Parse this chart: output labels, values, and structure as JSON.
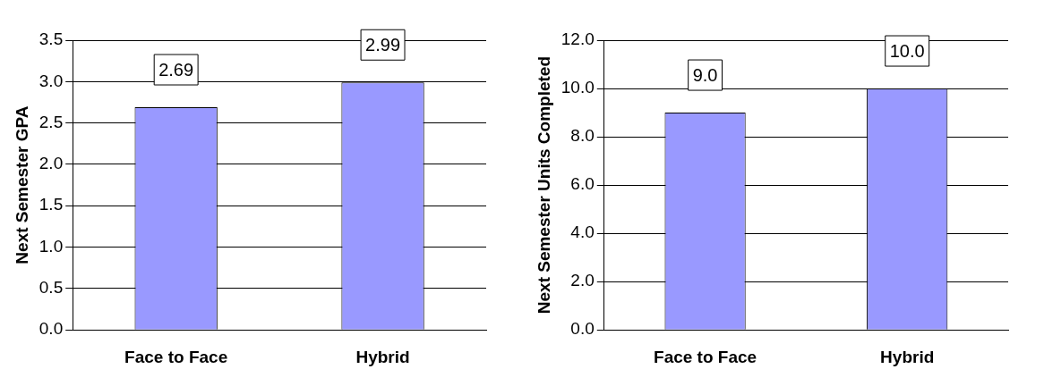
{
  "chart_data": [
    {
      "type": "bar",
      "ylabel": "Next Semester GPA",
      "categories": [
        "Face to Face",
        "Hybrid"
      ],
      "values": [
        2.69,
        2.99
      ],
      "value_labels": [
        "2.69",
        "2.99"
      ],
      "color": "#9999ff",
      "ylim": [
        0,
        3.5
      ],
      "yticks": [
        {
          "value": 0,
          "label": "0.0"
        },
        {
          "value": 0.5,
          "label": "0.5"
        },
        {
          "value": 1,
          "label": "1.0"
        },
        {
          "value": 1.5,
          "label": "1.5"
        },
        {
          "value": 2,
          "label": "2.0"
        },
        {
          "value": 2.5,
          "label": "2.5"
        },
        {
          "value": 3,
          "label": "3.0"
        },
        {
          "value": 3.5,
          "label": "3.5"
        }
      ],
      "grid": "y",
      "legend": false
    },
    {
      "type": "bar",
      "ylabel": "Next Semester Units Completed",
      "categories": [
        "Face to Face",
        "Hybrid"
      ],
      "values": [
        9.0,
        10.0
      ],
      "value_labels": [
        "9.0",
        "10.0"
      ],
      "color": "#9999ff",
      "ylim": [
        0,
        12
      ],
      "yticks": [
        {
          "value": 0,
          "label": "0.0"
        },
        {
          "value": 2,
          "label": "2.0"
        },
        {
          "value": 4,
          "label": "4.0"
        },
        {
          "value": 6,
          "label": "6.0"
        },
        {
          "value": 8,
          "label": "8.0"
        },
        {
          "value": 10,
          "label": "10.0"
        },
        {
          "value": 12,
          "label": "12.0"
        }
      ],
      "grid": "y",
      "legend": false
    }
  ]
}
